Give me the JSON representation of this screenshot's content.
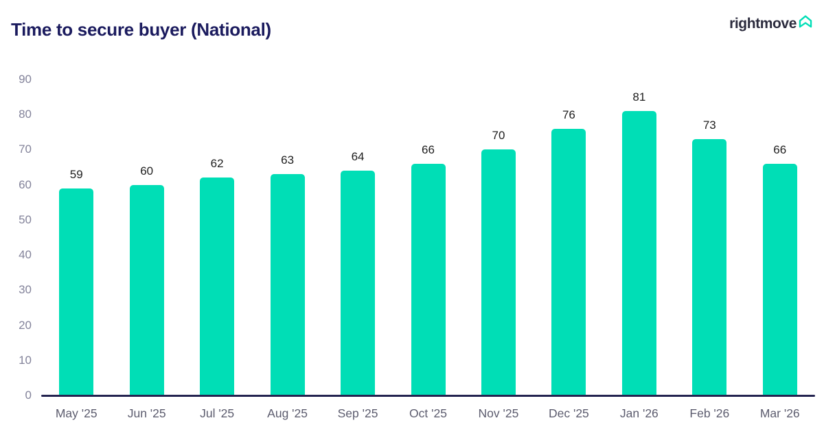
{
  "header": {
    "title": "Time to secure buyer (National)",
    "brand": {
      "name": "rightmove",
      "logo_icon": "house-up-arrow-icon",
      "logo_icon_color": "#00DEB6",
      "text_color": "#2b2b3d"
    }
  },
  "chart_data": {
    "type": "bar",
    "title": "Time to secure buyer (National)",
    "categories": [
      "May '25",
      "Jun '25",
      "Jul '25",
      "Aug '25",
      "Sep '25",
      "Oct '25",
      "Nov '25",
      "Dec '25",
      "Jan '26",
      "Feb '26",
      "Mar '26"
    ],
    "values": [
      59,
      60,
      62,
      63,
      64,
      66,
      70,
      76,
      81,
      73,
      66
    ],
    "xlabel": "",
    "ylabel": "",
    "ylim": [
      0,
      90
    ],
    "yticks": [
      0,
      10,
      20,
      30,
      40,
      50,
      60,
      70,
      80,
      90
    ],
    "grid": false,
    "legend": false,
    "value_labels_shown": true,
    "bar_color": "#00DEB6",
    "axis_line_color": "#23234f",
    "ytick_color": "#83839a",
    "xtick_color": "#5c5c6e",
    "value_label_color": "#1d1d1d"
  }
}
